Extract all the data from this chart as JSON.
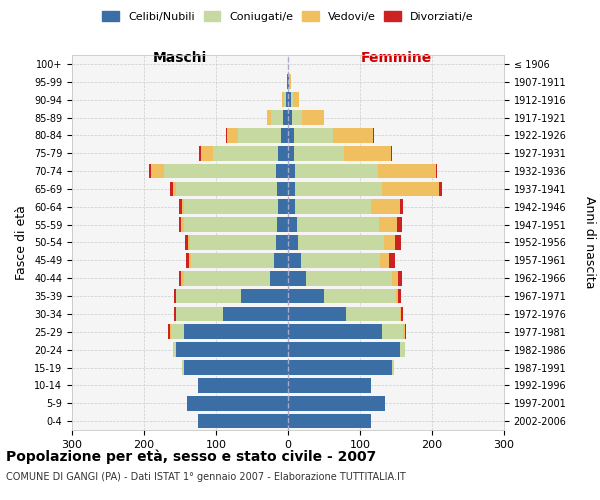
{
  "age_groups": [
    "0-4",
    "5-9",
    "10-14",
    "15-19",
    "20-24",
    "25-29",
    "30-34",
    "35-39",
    "40-44",
    "45-49",
    "50-54",
    "55-59",
    "60-64",
    "65-69",
    "70-74",
    "75-79",
    "80-84",
    "85-89",
    "90-94",
    "95-99",
    "100+"
  ],
  "birth_years": [
    "2002-2006",
    "1997-2001",
    "1992-1996",
    "1987-1991",
    "1982-1986",
    "1977-1981",
    "1972-1976",
    "1967-1971",
    "1962-1966",
    "1957-1961",
    "1952-1956",
    "1947-1951",
    "1942-1946",
    "1937-1941",
    "1932-1936",
    "1927-1931",
    "1922-1926",
    "1917-1921",
    "1912-1916",
    "1907-1911",
    "≤ 1906"
  ],
  "male_celibi": [
    125,
    140,
    125,
    145,
    155,
    145,
    90,
    65,
    25,
    20,
    16,
    15,
    14,
    15,
    17,
    14,
    10,
    7,
    3,
    1,
    0
  ],
  "male_coniugati": [
    0,
    0,
    0,
    2,
    5,
    18,
    65,
    90,
    120,
    115,
    120,
    130,
    130,
    140,
    155,
    90,
    60,
    17,
    3,
    1,
    0
  ],
  "male_vedovi": [
    0,
    0,
    0,
    0,
    0,
    1,
    1,
    1,
    3,
    3,
    3,
    3,
    3,
    5,
    18,
    17,
    15,
    5,
    3,
    0,
    0
  ],
  "male_divorziati": [
    0,
    0,
    0,
    0,
    0,
    2,
    2,
    2,
    4,
    4,
    4,
    3,
    4,
    4,
    3,
    2,
    1,
    0,
    0,
    0,
    0
  ],
  "female_celibi": [
    115,
    135,
    115,
    145,
    155,
    130,
    80,
    50,
    25,
    18,
    14,
    12,
    10,
    10,
    10,
    8,
    8,
    6,
    4,
    1,
    0
  ],
  "female_coniugati": [
    0,
    0,
    0,
    2,
    8,
    30,
    75,
    100,
    120,
    110,
    120,
    115,
    105,
    120,
    115,
    70,
    55,
    14,
    3,
    1,
    0
  ],
  "female_vedovi": [
    0,
    0,
    0,
    0,
    0,
    2,
    2,
    3,
    8,
    12,
    15,
    25,
    40,
    80,
    80,
    65,
    55,
    30,
    8,
    2,
    0
  ],
  "female_divorziati": [
    0,
    0,
    0,
    0,
    0,
    2,
    3,
    4,
    6,
    8,
    8,
    7,
    5,
    4,
    2,
    1,
    1,
    0,
    0,
    0,
    0
  ],
  "colors": {
    "celibi": "#3a6ea5",
    "coniugati": "#c5d9a0",
    "vedovi": "#f0c060",
    "divorziati": "#cc2222"
  },
  "xlim": 300,
  "title": "Popolazione per età, sesso e stato civile - 2007",
  "subtitle": "COMUNE DI GANGI (PA) - Dati ISTAT 1° gennaio 2007 - Elaborazione TUTTITALIA.IT",
  "ylabel_left": "Fasce di età",
  "ylabel_right": "Anni di nascita",
  "xlabel_left": "Maschi",
  "xlabel_right": "Femmine"
}
